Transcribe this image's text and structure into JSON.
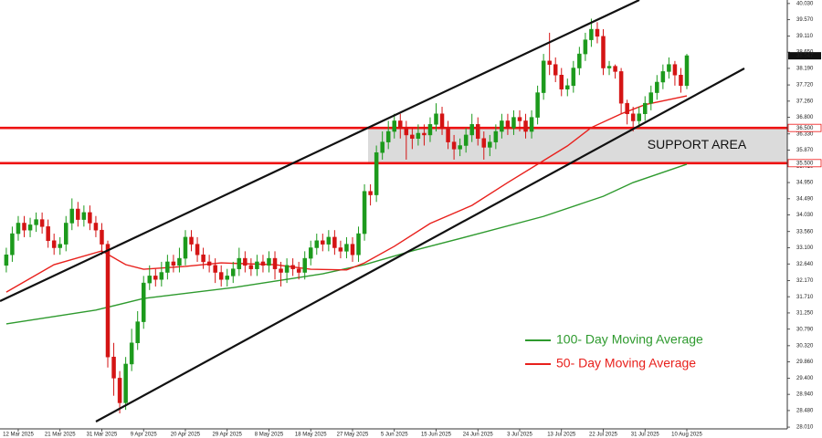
{
  "chart_data": {
    "type": "candlestick",
    "categories": [
      null,
      null,
      "12 Mar 2025",
      null,
      null,
      null,
      null,
      null,
      null,
      "21 Mar 2025",
      null,
      null,
      null,
      null,
      null,
      null,
      "31 Mar 2025",
      null,
      null,
      null,
      null,
      null,
      null,
      "9 Apr 2025",
      null,
      null,
      null,
      null,
      null,
      null,
      "20 Apr 2025",
      null,
      null,
      null,
      null,
      null,
      null,
      "29 Apr 2025",
      null,
      null,
      null,
      null,
      null,
      null,
      "8 May 2025",
      null,
      null,
      null,
      null,
      null,
      null,
      "18 May 2025",
      null,
      null,
      null,
      null,
      null,
      null,
      "27 May 2025",
      null,
      null,
      null,
      null,
      null,
      null,
      "5 Jun 2025",
      null,
      null,
      null,
      null,
      null,
      null,
      "15 Jun 2025",
      null,
      null,
      null,
      null,
      null,
      null,
      "24 Jun 2025",
      null,
      null,
      null,
      null,
      null,
      null,
      "3 Jul 2025",
      null,
      null,
      null,
      null,
      null,
      null,
      "13 Jul 2025",
      null,
      null,
      null,
      null,
      null,
      null,
      "22 Jul 2025",
      null,
      null,
      null,
      null,
      null,
      null,
      "31 Jul 2025",
      null,
      null,
      null,
      null,
      null,
      null,
      "10 Aug 2025"
    ],
    "open": [
      32.6,
      32.9,
      33.5,
      33.8,
      33.6,
      33.75,
      33.9,
      33.7,
      33.3,
      33.1,
      33.2,
      33.8,
      34.2,
      33.9,
      34.1,
      33.8,
      33.6,
      33.2,
      30.0,
      29.4,
      28.7,
      29.8,
      30.4,
      31.0,
      32.1,
      32.3,
      32.2,
      32.4,
      32.7,
      32.6,
      32.8,
      33.4,
      33.2,
      32.9,
      32.7,
      32.6,
      32.4,
      32.2,
      32.3,
      32.5,
      32.8,
      32.6,
      32.5,
      32.7,
      32.6,
      32.8,
      32.5,
      32.4,
      32.6,
      32.5,
      32.4,
      32.8,
      33.1,
      33.3,
      33.2,
      33.4,
      33.1,
      33.0,
      33.2,
      32.9,
      33.5,
      34.7,
      34.6,
      35.8,
      36.1,
      36.4,
      36.7,
      36.5,
      36.3,
      36.2,
      36.35,
      36.3,
      36.6,
      36.9,
      36.5,
      36.1,
      35.9,
      36.0,
      36.3,
      36.6,
      36.2,
      35.95,
      36.1,
      36.4,
      36.7,
      36.5,
      36.8,
      36.7,
      36.4,
      36.8,
      37.5,
      38.4,
      38.3,
      38.0,
      37.6,
      37.7,
      38.2,
      38.6,
      39.0,
      39.3,
      39.1,
      38.2,
      38.25,
      38.1,
      37.2,
      36.9,
      36.7,
      36.9,
      37.2,
      37.5,
      37.8,
      38.1,
      38.3,
      38.0,
      37.7
    ],
    "high": [
      33.1,
      33.7,
      34.0,
      34.0,
      33.95,
      34.1,
      34.1,
      33.9,
      33.5,
      33.4,
      34.0,
      34.5,
      34.4,
      34.3,
      34.3,
      34.0,
      33.8,
      33.3,
      30.4,
      29.6,
      30.0,
      30.8,
      31.3,
      32.3,
      32.6,
      32.5,
      32.7,
      32.9,
      32.9,
      33.1,
      33.6,
      33.6,
      33.4,
      33.1,
      32.9,
      32.8,
      32.6,
      32.5,
      32.7,
      33.1,
      33.0,
      32.8,
      32.9,
      32.9,
      33.0,
      33.0,
      32.7,
      32.8,
      32.8,
      32.7,
      33.0,
      33.3,
      33.5,
      33.5,
      33.6,
      33.6,
      33.3,
      33.4,
      33.4,
      33.7,
      34.9,
      34.9,
      36.0,
      36.4,
      36.7,
      36.9,
      36.9,
      36.7,
      36.5,
      36.6,
      36.6,
      36.8,
      37.2,
      37.1,
      36.7,
      36.3,
      36.2,
      36.5,
      36.9,
      36.8,
      36.4,
      36.3,
      36.6,
      36.9,
      36.9,
      37.0,
      37.0,
      36.9,
      37.0,
      37.7,
      38.6,
      39.2,
      38.5,
      38.2,
      37.9,
      38.4,
      38.8,
      39.2,
      39.6,
      39.5,
      39.3,
      38.4,
      38.3,
      38.2,
      37.3,
      37.1,
      37.1,
      37.4,
      37.7,
      38.0,
      38.3,
      38.5,
      38.4,
      38.2,
      38.6
    ],
    "low": [
      32.4,
      32.7,
      33.3,
      33.4,
      33.4,
      33.55,
      33.5,
      33.1,
      32.9,
      32.9,
      33.0,
      33.6,
      33.7,
      33.7,
      33.6,
      33.4,
      32.9,
      29.7,
      28.9,
      28.4,
      28.5,
      29.6,
      30.2,
      30.8,
      31.9,
      32.0,
      32.0,
      32.2,
      32.4,
      32.4,
      32.6,
      33.0,
      32.7,
      32.5,
      32.4,
      32.1,
      32.0,
      32.0,
      32.1,
      32.3,
      32.4,
      32.3,
      32.3,
      32.4,
      32.4,
      32.2,
      32.0,
      32.1,
      32.3,
      32.2,
      32.2,
      32.6,
      32.9,
      33.0,
      33.0,
      32.9,
      32.8,
      32.8,
      32.7,
      32.7,
      33.3,
      34.3,
      34.4,
      35.6,
      35.9,
      36.2,
      36.2,
      35.6,
      35.9,
      36.0,
      36.0,
      36.1,
      36.4,
      36.3,
      35.9,
      35.6,
      35.7,
      35.8,
      36.1,
      36.0,
      35.6,
      35.7,
      35.9,
      36.2,
      36.3,
      36.3,
      36.4,
      36.2,
      36.2,
      36.6,
      37.3,
      38.0,
      37.8,
      37.4,
      37.4,
      37.5,
      38.0,
      38.4,
      38.8,
      38.9,
      38.0,
      38.0,
      37.9,
      36.9,
      36.6,
      36.4,
      36.5,
      36.7,
      37.0,
      37.3,
      37.6,
      37.9,
      37.7,
      37.5,
      37.6
    ],
    "close": [
      32.9,
      33.5,
      33.8,
      33.6,
      33.75,
      33.9,
      33.7,
      33.3,
      33.1,
      33.2,
      33.8,
      34.2,
      33.9,
      34.1,
      33.8,
      33.6,
      33.2,
      30.0,
      29.4,
      28.7,
      29.8,
      30.4,
      31.0,
      32.1,
      32.3,
      32.2,
      32.4,
      32.7,
      32.6,
      32.8,
      33.4,
      33.2,
      32.9,
      32.7,
      32.6,
      32.4,
      32.2,
      32.3,
      32.5,
      32.8,
      32.6,
      32.5,
      32.7,
      32.6,
      32.8,
      32.5,
      32.4,
      32.6,
      32.5,
      32.4,
      32.8,
      33.1,
      33.3,
      33.2,
      33.4,
      33.1,
      33.0,
      33.2,
      32.9,
      33.5,
      34.7,
      34.6,
      35.8,
      36.1,
      36.4,
      36.7,
      36.5,
      36.3,
      36.2,
      36.35,
      36.3,
      36.6,
      36.9,
      36.5,
      36.1,
      35.9,
      36.0,
      36.3,
      36.6,
      36.2,
      35.95,
      36.1,
      36.4,
      36.7,
      36.5,
      36.8,
      36.7,
      36.4,
      36.8,
      37.5,
      38.4,
      38.3,
      38.0,
      37.6,
      37.7,
      38.2,
      38.6,
      39.0,
      39.3,
      39.1,
      38.2,
      38.25,
      38.1,
      37.2,
      36.9,
      36.7,
      36.9,
      37.2,
      37.5,
      37.8,
      38.1,
      38.3,
      38.0,
      37.7,
      38.55
    ],
    "up_color": "#1c9a1c",
    "down_color": "#d41414",
    "overlays": [
      {
        "name": "100- Day Moving Average",
        "color": "#2e9a2e",
        "x": [
          0,
          15,
          23,
          38,
          53,
          60,
          68,
          78,
          90,
          100,
          105,
          114
        ],
        "values": [
          30.94,
          31.33,
          31.66,
          31.97,
          32.36,
          32.62,
          33.01,
          33.45,
          33.99,
          34.56,
          34.95,
          35.47
        ]
      },
      {
        "name": "50- Day Moving Average",
        "color": "#e8201c",
        "x": [
          0,
          8,
          16,
          20,
          23,
          30,
          36,
          45,
          51,
          57,
          60,
          65,
          71,
          78,
          84,
          89,
          94,
          98,
          103,
          107,
          114
        ],
        "values": [
          31.84,
          32.62,
          33.01,
          32.62,
          32.49,
          32.57,
          32.67,
          32.62,
          32.49,
          32.47,
          32.67,
          33.14,
          33.79,
          34.3,
          34.95,
          35.47,
          35.99,
          36.51,
          36.9,
          37.16,
          37.41
        ]
      }
    ],
    "levels": [
      {
        "value": 36.5,
        "label": "36.500"
      },
      {
        "value": 35.5,
        "label": "35.500"
      }
    ],
    "level_color": "#ee1111",
    "support_area_label": "SUPPORT AREA",
    "last_price": 38.547,
    "ylim": [
      27.96,
      40.13
    ],
    "yticks": [
      {
        "value": 40.03,
        "label": "40.030"
      },
      {
        "value": 39.57,
        "label": "39.570"
      },
      {
        "value": 39.11,
        "label": "39.110"
      },
      {
        "value": 38.65,
        "label": "38.650"
      },
      {
        "value": 38.19,
        "label": "38.190"
      },
      {
        "value": 37.72,
        "label": "37.720"
      },
      {
        "value": 37.26,
        "label": "37.260"
      },
      {
        "value": 36.8,
        "label": "36.800"
      },
      {
        "value": 36.33,
        "label": "36.330"
      },
      {
        "value": 35.87,
        "label": "35.870"
      },
      {
        "value": 35.41,
        "label": "35.410"
      },
      {
        "value": 34.95,
        "label": "34.950"
      },
      {
        "value": 34.49,
        "label": "34.490"
      },
      {
        "value": 34.03,
        "label": "34.030"
      },
      {
        "value": 33.56,
        "label": "33.560"
      },
      {
        "value": 33.1,
        "label": "33.100"
      },
      {
        "value": 32.64,
        "label": "32.640"
      },
      {
        "value": 32.17,
        "label": "32.170"
      },
      {
        "value": 31.71,
        "label": "31.710"
      },
      {
        "value": 31.25,
        "label": "31.250"
      },
      {
        "value": 30.79,
        "label": "30.790"
      },
      {
        "value": 30.32,
        "label": "30.320"
      },
      {
        "value": 29.86,
        "label": "29.860"
      },
      {
        "value": 29.4,
        "label": "29.400"
      },
      {
        "value": 28.94,
        "label": "28.940"
      },
      {
        "value": 28.48,
        "label": "28.480"
      },
      {
        "value": 28.01,
        "label": "28.010"
      }
    ]
  }
}
